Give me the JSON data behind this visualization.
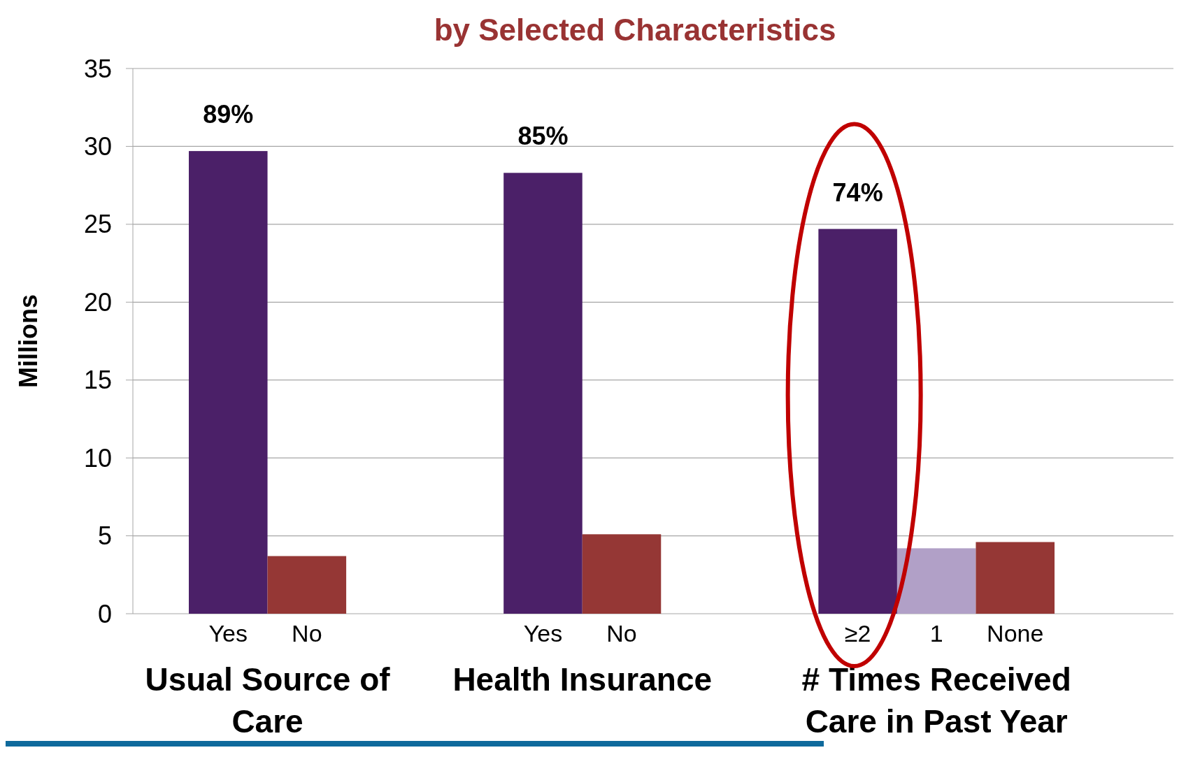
{
  "chart_data": {
    "type": "bar",
    "title": "by Selected Characteristics",
    "ylabel": "Millions",
    "categories": [
      "Yes",
      "No",
      null,
      null,
      "Yes",
      "No",
      null,
      null,
      "≥2",
      "1",
      "None"
    ],
    "values": [
      29.7,
      3.7,
      null,
      null,
      28.3,
      5.1,
      null,
      null,
      24.7,
      4.2,
      4.6
    ],
    "colors": [
      "#4b2068",
      "#953735",
      null,
      null,
      "#4b2068",
      "#953735",
      null,
      null,
      "#4b2068",
      "#b1a0c7",
      "#953735"
    ],
    "ylim": [
      0,
      35
    ],
    "yticks": [
      0,
      5,
      10,
      15,
      20,
      25,
      30,
      35
    ],
    "grid": "y",
    "annotations": [
      "Usual Source of Care",
      "Health Insurance",
      "# Times Received Care in Past Year",
      {
        "text": "89%",
        "y": 29.7
      },
      {
        "text": "85%",
        "y": 28.3
      },
      {
        "text": "74%",
        "y": 24.7
      }
    ]
  }
}
